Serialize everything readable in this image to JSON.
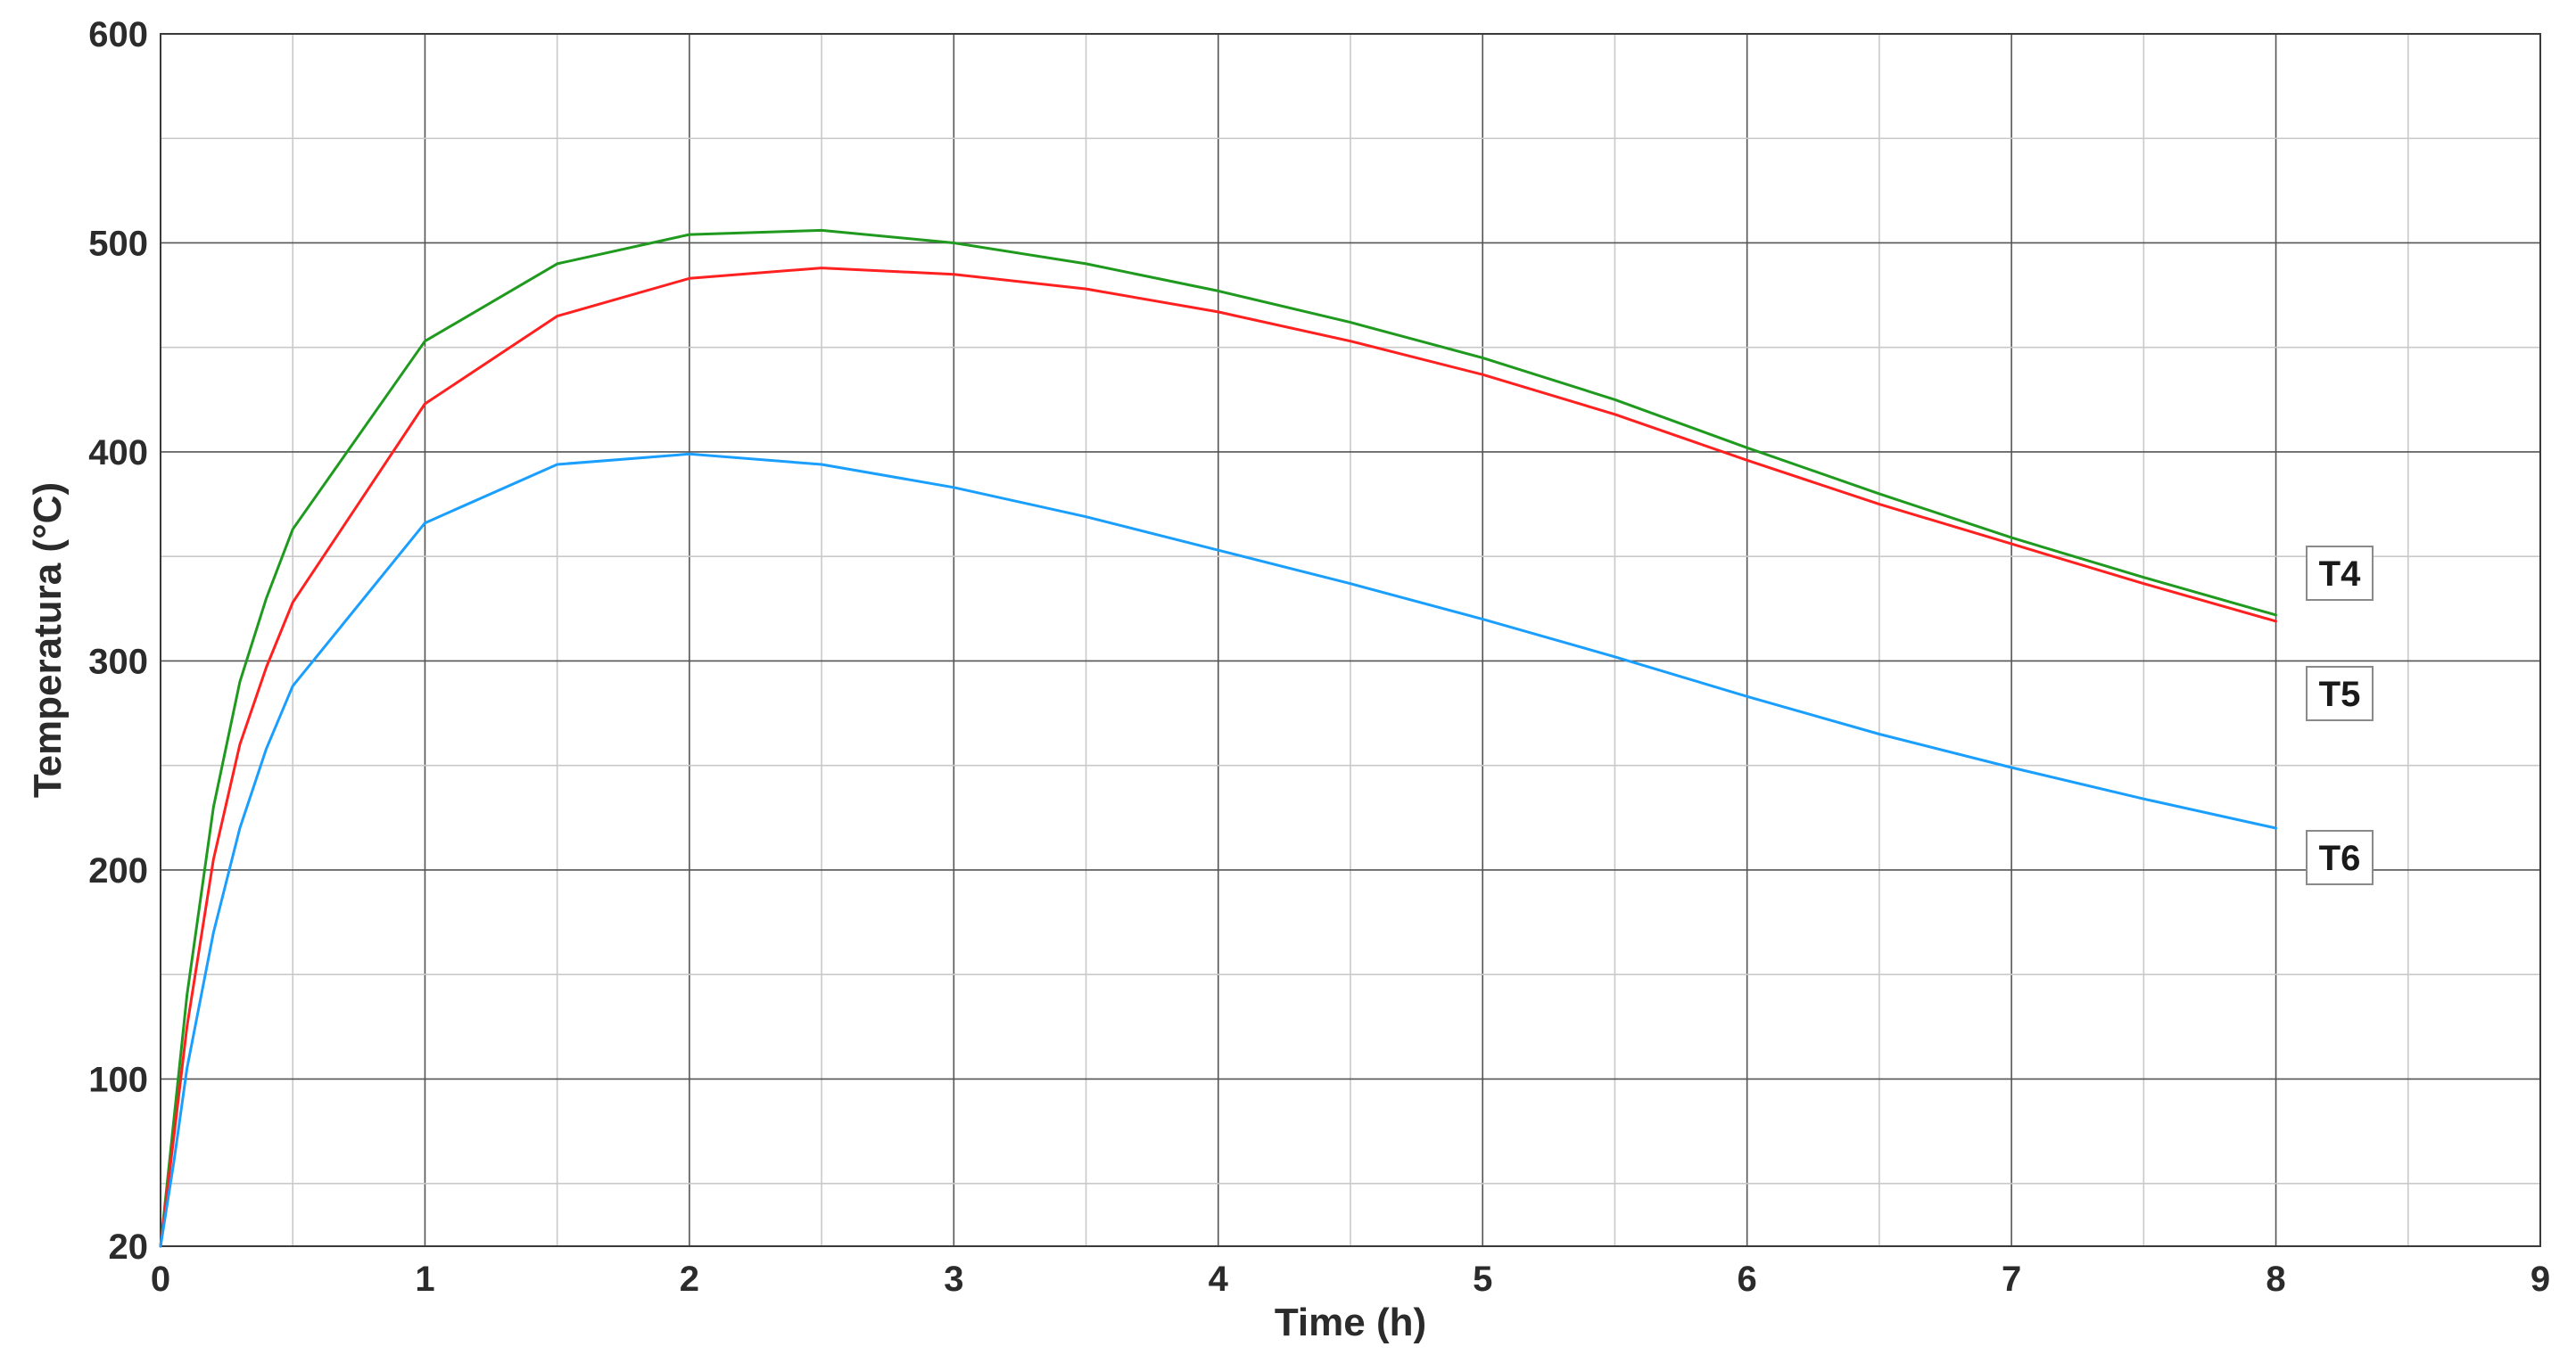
{
  "chart_data": {
    "type": "line",
    "title": "",
    "xlabel": "Time (h)",
    "ylabel": "Temperatura (°C)",
    "xlim": [
      0,
      9
    ],
    "ylim": [
      20,
      600
    ],
    "x_ticks": [
      0,
      1,
      2,
      3,
      4,
      5,
      6,
      7,
      8,
      9
    ],
    "y_ticks": [
      20,
      100,
      200,
      300,
      400,
      500,
      600
    ],
    "grid": true,
    "legend": "none",
    "series": [
      {
        "name": "T4",
        "color": "#1f9a1f",
        "x": [
          0,
          0.05,
          0.1,
          0.2,
          0.3,
          0.4,
          0.5,
          1,
          1.5,
          2,
          2.5,
          3,
          3.5,
          4,
          4.5,
          5,
          5.5,
          6,
          6.5,
          7,
          7.5,
          8
        ],
        "y": [
          20,
          80,
          140,
          230,
          290,
          330,
          363,
          453,
          490,
          504,
          506,
          500,
          490,
          477,
          462,
          445,
          425,
          402,
          380,
          359,
          340,
          322
        ]
      },
      {
        "name": "T5",
        "color": "#ff2020",
        "x": [
          0,
          0.05,
          0.1,
          0.2,
          0.3,
          0.4,
          0.5,
          1,
          1.5,
          2,
          2.5,
          3,
          3.5,
          4,
          4.5,
          5,
          5.5,
          6,
          6.5,
          7,
          7.5,
          8
        ],
        "y": [
          20,
          72,
          125,
          205,
          260,
          297,
          328,
          423,
          465,
          483,
          488,
          485,
          478,
          467,
          453,
          437,
          418,
          396,
          375,
          356,
          337,
          319
        ]
      },
      {
        "name": "T6",
        "color": "#1a9fff",
        "x": [
          0,
          0.05,
          0.1,
          0.2,
          0.3,
          0.4,
          0.5,
          1,
          1.5,
          2,
          2.5,
          3,
          3.5,
          4,
          4.5,
          5,
          5.5,
          6,
          6.5,
          7,
          7.5,
          8
        ],
        "y": [
          20,
          60,
          105,
          170,
          220,
          258,
          288,
          366,
          394,
          399,
          394,
          383,
          369,
          353,
          337,
          320,
          302,
          283,
          265,
          249,
          234,
          220
        ]
      }
    ]
  }
}
